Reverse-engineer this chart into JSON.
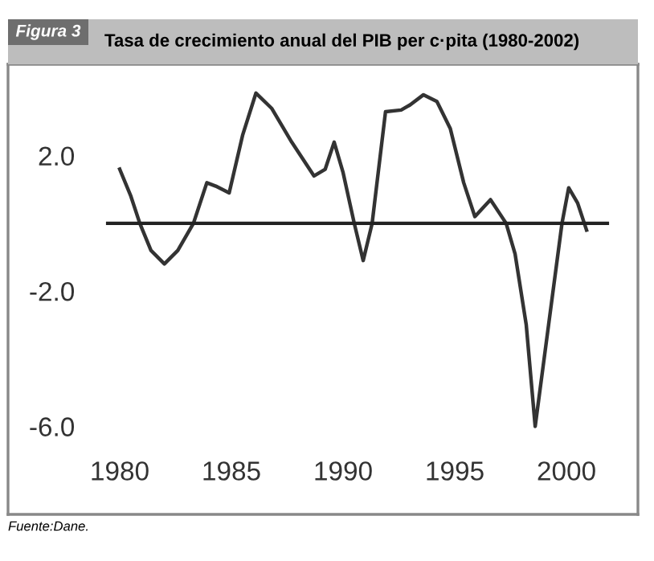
{
  "chart_data": {
    "type": "line",
    "title": "Tasa de crecimiento anual del PIB per c·pita (1980-2002)",
    "annotations": [
      "Figura 3",
      "Fuente:Dane."
    ],
    "series": [
      {
        "color": "#333333",
        "x": [
          1980,
          1980.5,
          1980.9,
          1981.4,
          1982.0,
          1982.6,
          1983.3,
          1983.9,
          1984.3,
          1984.9,
          1985.5,
          1986.1,
          1986.8,
          1987.7,
          1988.7,
          1989.2,
          1989.6,
          1990.0,
          1990.5,
          1990.9,
          1991.3,
          1991.9,
          1992.6,
          1993.0,
          1993.6,
          1994.2,
          1994.8,
          1995.4,
          1995.9,
          1996.6,
          1997.3,
          1997.7,
          1998.2,
          1998.6,
          1999.2,
          1999.8,
          2000.1,
          2000.5,
          2000.9
        ],
        "values": [
          1.6,
          0.8,
          0.0,
          -0.8,
          -1.2,
          -0.8,
          0.0,
          1.2,
          1.1,
          0.9,
          2.6,
          3.85,
          3.4,
          2.4,
          1.4,
          1.6,
          2.4,
          1.5,
          0.0,
          -1.1,
          0.0,
          3.3,
          3.35,
          3.5,
          3.8,
          3.6,
          2.8,
          1.2,
          0.2,
          0.7,
          0.0,
          -0.9,
          -3.0,
          -6.0,
          -3.0,
          0.0,
          1.05,
          0.6,
          -0.2
        ]
      }
    ],
    "xlim": [
      1975.0,
      2003.2
    ],
    "ylim": [
      -8.6,
      4.7
    ],
    "xticks": [
      1980,
      1985,
      1990,
      1995,
      2000
    ],
    "yticks": [
      {
        "value": 2,
        "label": "2.0"
      },
      {
        "value": -2,
        "label": "-2.0"
      },
      {
        "value": -6,
        "label": "-6.0"
      }
    ],
    "ref_lines": [
      {
        "axis": "y",
        "value": 0,
        "color": "#222222",
        "line_style": "solid"
      }
    ],
    "grid": false,
    "legend": false
  }
}
